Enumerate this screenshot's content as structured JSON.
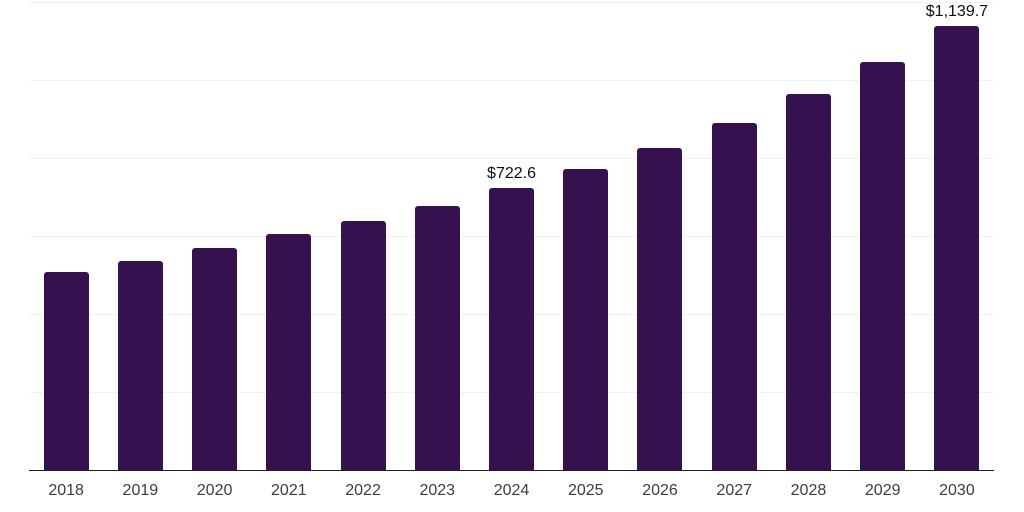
{
  "chart_data": {
    "type": "bar",
    "title": "",
    "xlabel": "",
    "ylabel": "",
    "categories": [
      "2018",
      "2019",
      "2020",
      "2021",
      "2022",
      "2023",
      "2024",
      "2025",
      "2026",
      "2027",
      "2028",
      "2029",
      "2030"
    ],
    "values": [
      507,
      537,
      570,
      604,
      638,
      676,
      722.6,
      772,
      826,
      891,
      964,
      1045,
      1139.7
    ],
    "data_labels": {
      "2024": "$722.6",
      "2030": "$1,139.7"
    },
    "ylim": [
      0,
      1200
    ],
    "gridline_step": 200,
    "grid": "horizontal",
    "legend": "none",
    "colors": {
      "bar": "#35124F",
      "axis_line": "#1f1f1f",
      "gridline": "#f0f0f0",
      "tick_label": "#3d3d3d",
      "value_label": "#0f0f0f",
      "background": "#ffffff"
    }
  }
}
